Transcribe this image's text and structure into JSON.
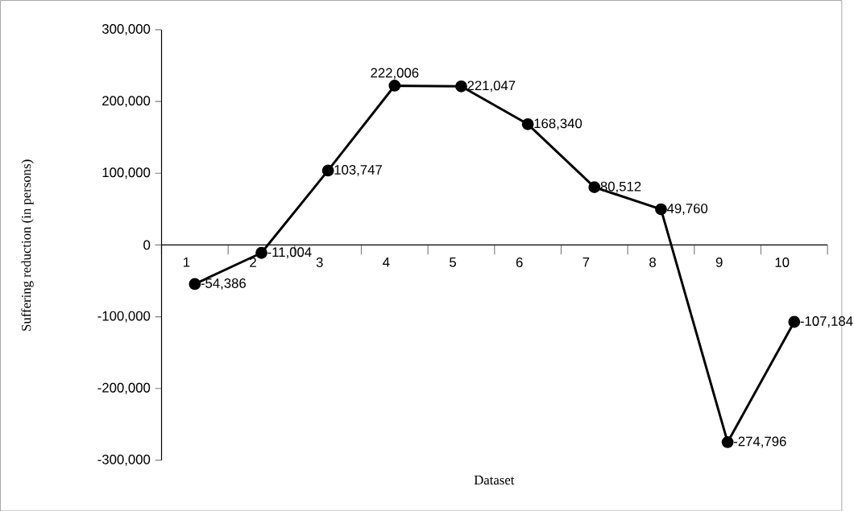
{
  "chart_data": {
    "type": "line",
    "xlabel": "Dataset",
    "ylabel": "Suffering reduction (in persons)",
    "categories": [
      "1",
      "2",
      "3",
      "4",
      "5",
      "6",
      "7",
      "8",
      "9",
      "10"
    ],
    "values": [
      -54386,
      -11004,
      103747,
      222006,
      221047,
      168340,
      80512,
      49760,
      -274796,
      -107184
    ],
    "value_labels": [
      "-54,386",
      "-11,004",
      "103,747",
      "222,006",
      "221,047",
      "168,340",
      "80,512",
      "49,760",
      "-274,796",
      "-107,184"
    ],
    "color": "#000000",
    "marker": "circle",
    "line_style": "solid",
    "grid": false,
    "ylim": [
      -300000,
      300000
    ],
    "yticks": [
      {
        "value": -300000,
        "label": "-300,000"
      },
      {
        "value": -200000,
        "label": "-200,000"
      },
      {
        "value": -100000,
        "label": "-100,000"
      },
      0,
      {
        "value": 100000,
        "label": "100,000"
      },
      {
        "value": 200000,
        "label": "200,000"
      },
      {
        "value": 300000,
        "label": "300,000"
      }
    ]
  }
}
